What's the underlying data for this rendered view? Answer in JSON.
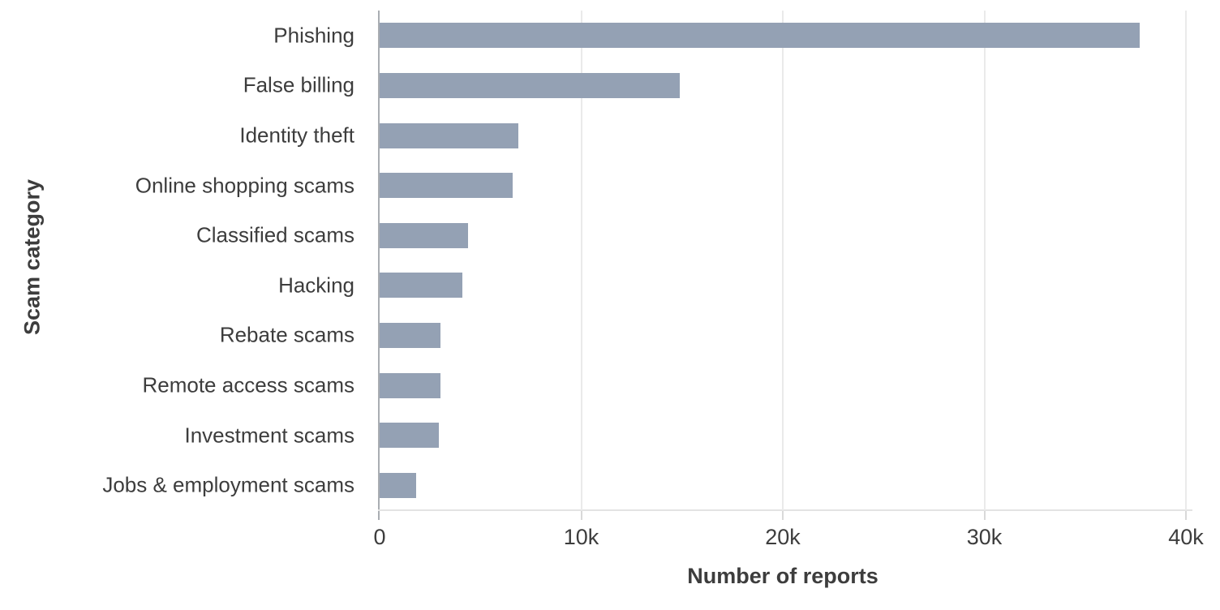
{
  "chart_data": {
    "type": "bar",
    "orientation": "horizontal",
    "title": "",
    "categories": [
      "Phishing",
      "False billing",
      "Identity theft",
      "Online shopping scams",
      "Classified scams",
      "Hacking",
      "Rebate scams",
      "Remote access scams",
      "Investment scams",
      "Jobs & employment scams"
    ],
    "values": [
      37700,
      14900,
      6900,
      6600,
      4400,
      4100,
      3000,
      3000,
      2950,
      1800
    ],
    "xlabel": "Number of reports",
    "ylabel": "Scam category",
    "xlim": [
      0,
      40000
    ],
    "x_ticks": [
      {
        "value": 0,
        "label": "0"
      },
      {
        "value": 10000,
        "label": "10k"
      },
      {
        "value": 20000,
        "label": "20k"
      },
      {
        "value": 30000,
        "label": "30k"
      },
      {
        "value": 40000,
        "label": "40k"
      }
    ],
    "grid": "vertical-gridlines-on",
    "legend": "none",
    "colors": {
      "bar": "#94a1b4",
      "axis_line": "#a9adb2",
      "baseline": "#e3e3e3",
      "gridline": "#eaeaea",
      "tick": "#d9d9d9",
      "text": "#3d3d3d",
      "background": "#ffffff"
    }
  }
}
